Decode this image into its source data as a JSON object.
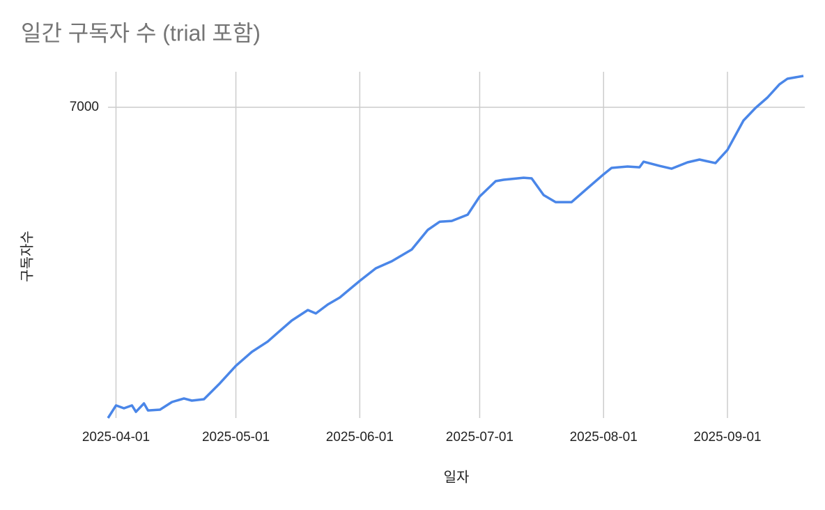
{
  "chart_data": {
    "type": "line",
    "title": "일간 구독자 수 (trial 포함)",
    "x_label": "일자",
    "y_label": "구독자수",
    "x": [
      "2025-03-30",
      "2025-04-01",
      "2025-04-03",
      "2025-04-05",
      "2025-04-06",
      "2025-04-08",
      "2025-04-09",
      "2025-04-12",
      "2025-04-15",
      "2025-04-18",
      "2025-04-20",
      "2025-04-23",
      "2025-04-27",
      "2025-05-01",
      "2025-05-05",
      "2025-05-09",
      "2025-05-12",
      "2025-05-15",
      "2025-05-19",
      "2025-05-21",
      "2025-05-24",
      "2025-05-27",
      "2025-06-01",
      "2025-06-05",
      "2025-06-09",
      "2025-06-14",
      "2025-06-18",
      "2025-06-21",
      "2025-06-24",
      "2025-06-28",
      "2025-07-01",
      "2025-07-05",
      "2025-07-07",
      "2025-07-12",
      "2025-07-14",
      "2025-07-17",
      "2025-07-20",
      "2025-07-24",
      "2025-07-28",
      "2025-08-01",
      "2025-08-03",
      "2025-08-07",
      "2025-08-10",
      "2025-08-11",
      "2025-08-15",
      "2025-08-18",
      "2025-08-22",
      "2025-08-25",
      "2025-08-29",
      "2025-09-01",
      "2025-09-05",
      "2025-09-08",
      "2025-09-11",
      "2025-09-14",
      "2025-09-16",
      "2025-09-20"
    ],
    "values": [
      5000,
      5081,
      5063,
      5081,
      5040,
      5094,
      5049,
      5054,
      5103,
      5126,
      5112,
      5121,
      5224,
      5336,
      5426,
      5493,
      5561,
      5628,
      5695,
      5673,
      5731,
      5776,
      5883,
      5964,
      6009,
      6085,
      6211,
      6264,
      6269,
      6309,
      6426,
      6525,
      6534,
      6547,
      6543,
      6435,
      6390,
      6390,
      6480,
      6569,
      6610,
      6619,
      6614,
      6650,
      6623,
      6605,
      6646,
      6664,
      6641,
      6726,
      6915,
      6996,
      7063,
      7148,
      7184,
      7202
    ],
    "color": "#4a86e8",
    "xlim": [
      "2025-03-30",
      "2025-09-20"
    ],
    "xticks": [
      "2025-04-01",
      "2025-05-01",
      "2025-06-01",
      "2025-07-01",
      "2025-08-01",
      "2025-09-01"
    ],
    "ylim": [
      5000,
      7229
    ],
    "yticks": [
      7000
    ],
    "grid": true
  }
}
